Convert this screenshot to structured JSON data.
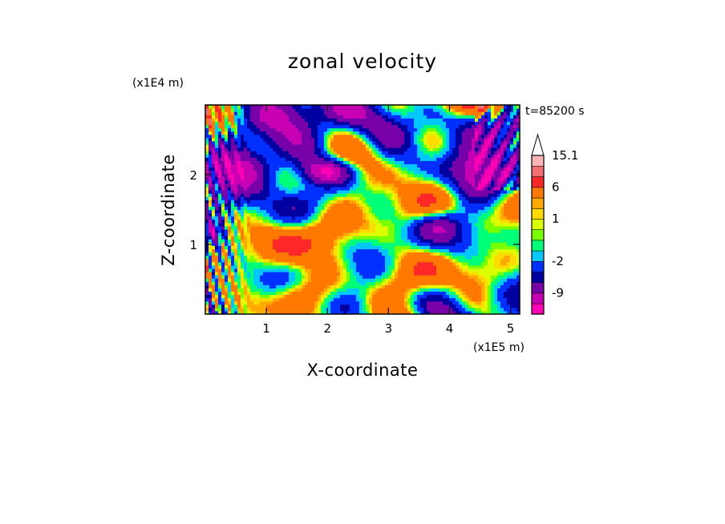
{
  "chart_data": {
    "type": "heatmap",
    "title": "zonal velocity",
    "xlabel": "X-coordinate",
    "ylabel": "Z-coordinate",
    "x_scale_label": "(x1E5 m)",
    "y_scale_label": "(x1E4 m)",
    "time_label": "t=85200 s",
    "xlim": [
      0,
      5.15
    ],
    "ylim": [
      0,
      3.0
    ],
    "x_ticks": [
      {
        "value": 1,
        "label": "1"
      },
      {
        "value": 2,
        "label": "2"
      },
      {
        "value": 3,
        "label": "3"
      },
      {
        "value": 4,
        "label": "4"
      },
      {
        "value": 5,
        "label": "5"
      }
    ],
    "y_ticks": [
      {
        "value": 1,
        "label": "1"
      },
      {
        "value": 2,
        "label": "2"
      }
    ],
    "colorbar": {
      "levels": [
        {
          "color": "#ff00b4",
          "from": -15.1,
          "to": -12
        },
        {
          "color": "#c800b4",
          "from": -12,
          "to": -9
        },
        {
          "color": "#7800a8",
          "from": -9,
          "to": -6
        },
        {
          "color": "#0000a0",
          "from": -6,
          "to": -4
        },
        {
          "color": "#0030ff",
          "from": -4,
          "to": -2
        },
        {
          "color": "#00c8ff",
          "from": -2,
          "to": -1
        },
        {
          "color": "#00ff78",
          "from": -1,
          "to": 0
        },
        {
          "color": "#78ff00",
          "from": 0,
          "to": 0.5
        },
        {
          "color": "#dcff00",
          "from": 0.5,
          "to": 1
        },
        {
          "color": "#ffdc00",
          "from": 1,
          "to": 1.5
        },
        {
          "color": "#ffaa00",
          "from": 1.5,
          "to": 2
        },
        {
          "color": "#ff7800",
          "from": 2,
          "to": 6
        },
        {
          "color": "#ff2828",
          "from": 6,
          "to": 9
        },
        {
          "color": "#f07070",
          "from": 9,
          "to": 12
        },
        {
          "color": "#ffb4b4",
          "from": 12,
          "to": 15.1
        }
      ],
      "tick_labels": [
        "15.1",
        "6",
        "1",
        "-2",
        "-9"
      ],
      "extend": "max"
    }
  }
}
